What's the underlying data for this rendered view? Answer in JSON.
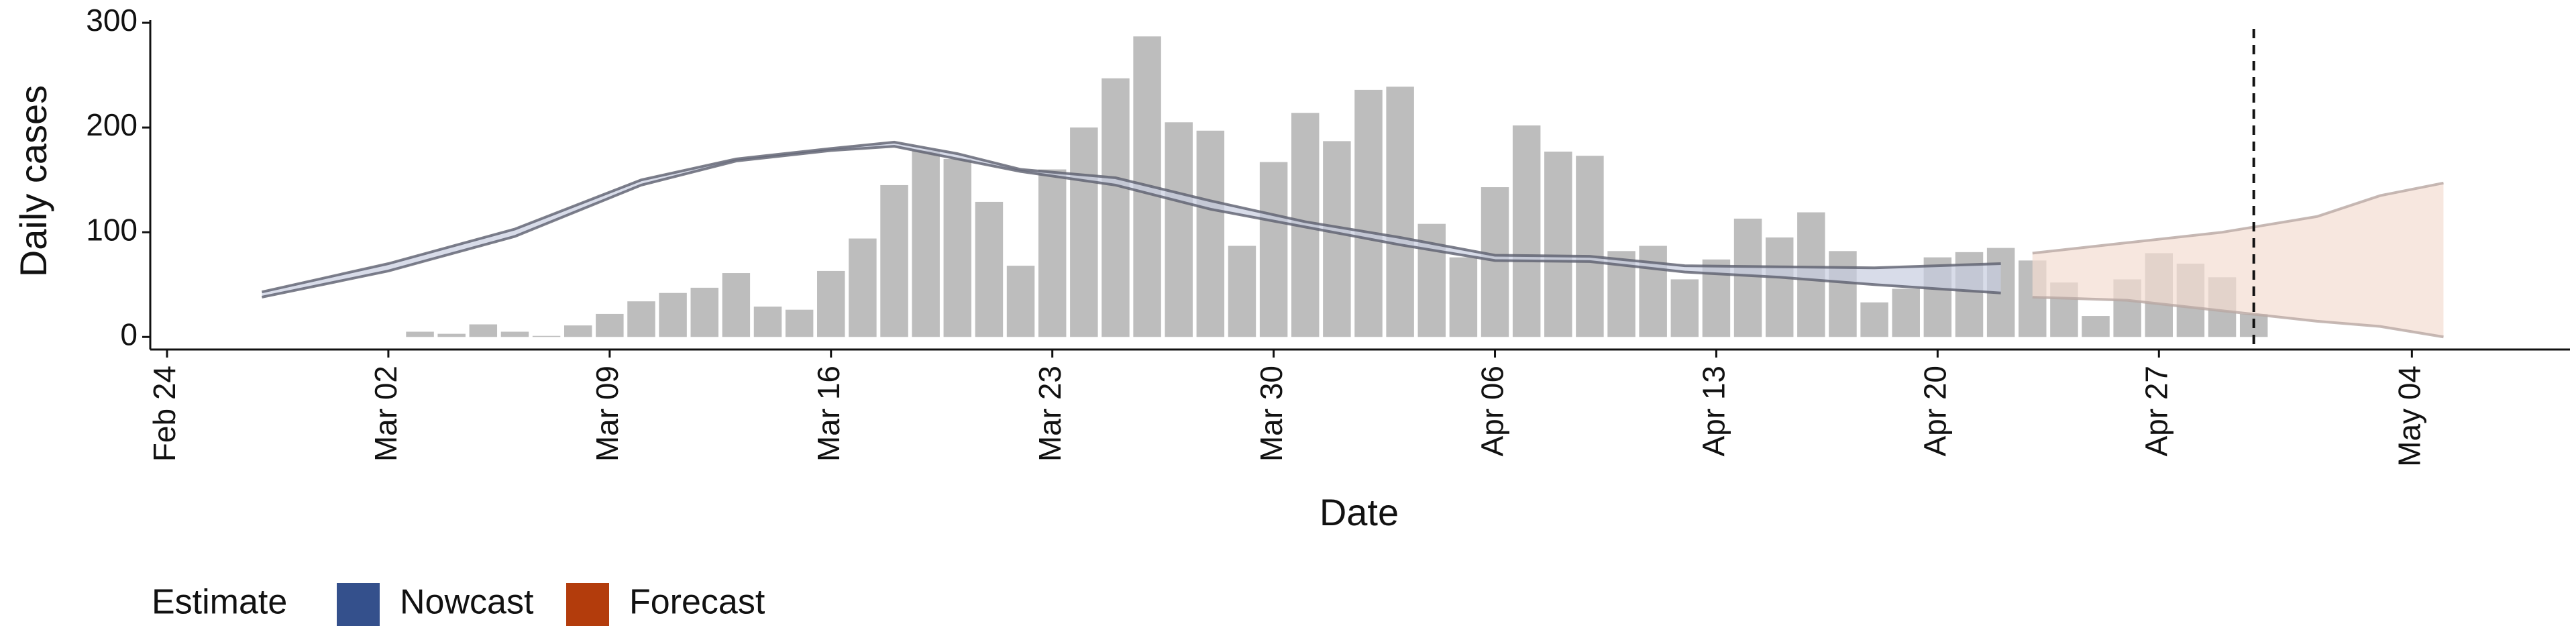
{
  "chart_data": {
    "type": "bar-band",
    "y_label": "Daily cases",
    "x_label": "Date",
    "xlim": [
      "Feb 24",
      "May 09"
    ],
    "xticks": [
      "Feb 24",
      "Mar 02",
      "Mar 09",
      "Mar 16",
      "Mar 23",
      "Mar 30",
      "Apr 06",
      "Apr 13",
      "Apr 20",
      "Apr 27",
      "May 04"
    ],
    "ylim": [
      -12,
      300
    ],
    "yticks": [
      0,
      100,
      200,
      300
    ],
    "bars": {
      "color": "#bdbdbd",
      "x": [
        "Mar 03",
        "Mar 04",
        "Mar 05",
        "Mar 06",
        "Mar 07",
        "Mar 08",
        "Mar 09",
        "Mar 10",
        "Mar 11",
        "Mar 12",
        "Mar 13",
        "Mar 14",
        "Mar 15",
        "Mar 16",
        "Mar 17",
        "Mar 18",
        "Mar 19",
        "Mar 20",
        "Mar 21",
        "Mar 22",
        "Mar 23",
        "Mar 24",
        "Mar 25",
        "Mar 26",
        "Mar 27",
        "Mar 28",
        "Mar 29",
        "Mar 30",
        "Mar 31",
        "Apr 01",
        "Apr 02",
        "Apr 03",
        "Apr 04",
        "Apr 05",
        "Apr 06",
        "Apr 07",
        "Apr 08",
        "Apr 09",
        "Apr 10",
        "Apr 11",
        "Apr 12",
        "Apr 13",
        "Apr 14",
        "Apr 15",
        "Apr 16",
        "Apr 17",
        "Apr 18",
        "Apr 19",
        "Apr 20",
        "Apr 21",
        "Apr 22",
        "Apr 23",
        "Apr 24",
        "Apr 25",
        "Apr 26",
        "Apr 27",
        "Apr 28",
        "Apr 29",
        "Apr 30"
      ],
      "values": [
        5,
        3,
        12,
        5,
        1,
        11,
        22,
        34,
        42,
        47,
        61,
        29,
        26,
        63,
        94,
        145,
        178,
        170,
        129,
        68,
        160,
        200,
        247,
        287,
        205,
        197,
        87,
        167,
        214,
        187,
        236,
        239,
        108,
        76,
        143,
        202,
        177,
        173,
        82,
        87,
        55,
        74,
        113,
        95,
        119,
        82,
        33,
        46,
        76,
        81,
        85,
        73,
        52,
        20,
        55,
        80,
        70,
        57,
        22
      ]
    },
    "legend_title": "Estimate",
    "series": [
      {
        "name": "Nowcast",
        "color": "#34508c",
        "fill": "#c7cde0",
        "line_color": "#5c5f6e",
        "x": [
          "Feb 27",
          "Mar 02",
          "Mar 06",
          "Mar 10",
          "Mar 13",
          "Mar 16",
          "Mar 18",
          "Mar 20",
          "Mar 22",
          "Mar 25",
          "Mar 28",
          "Mar 31",
          "Apr 03",
          "Apr 06",
          "Apr 09",
          "Apr 12",
          "Apr 15",
          "Apr 18",
          "Apr 22"
        ],
        "upper": [
          43,
          70,
          103,
          150,
          170,
          180,
          186,
          175,
          160,
          152,
          130,
          110,
          95,
          78,
          77,
          68,
          67,
          66,
          70
        ],
        "lower": [
          38,
          63,
          96,
          145,
          168,
          178,
          182,
          170,
          158,
          145,
          122,
          105,
          88,
          73,
          72,
          62,
          57,
          50,
          42
        ]
      },
      {
        "name": "Forecast",
        "color": "#b33c0c",
        "fill": "#f3ddd2",
        "line_color": "#b8a8a2",
        "x": [
          "Apr 23",
          "Apr 26",
          "Apr 29",
          "May 01",
          "May 03",
          "May 05"
        ],
        "upper": [
          80,
          90,
          100,
          115,
          135,
          147
        ],
        "lower": [
          38,
          35,
          25,
          15,
          10,
          0
        ]
      }
    ],
    "vline": "Apr 30"
  }
}
